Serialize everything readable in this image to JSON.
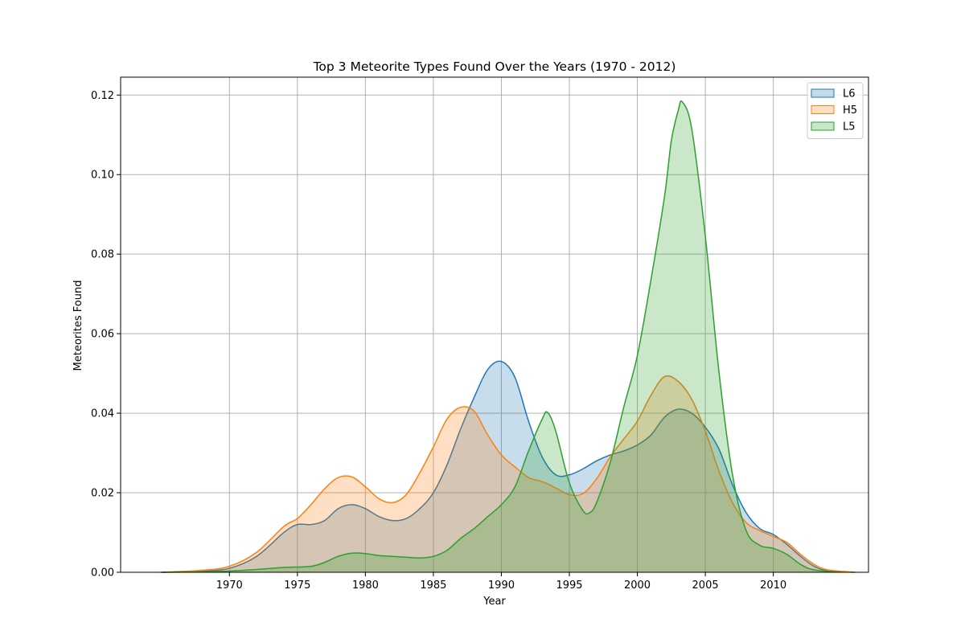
{
  "chart_data": {
    "type": "area",
    "title": "Top 3 Meteorite Types Found Over the Years (1970 - 2012)",
    "xlabel": "Year",
    "ylabel": "Meteorites Found",
    "xlim": [
      1962,
      2017
    ],
    "ylim": [
      0,
      0.1245
    ],
    "xticks": [
      1970,
      1975,
      1980,
      1985,
      1990,
      1995,
      2000,
      2005,
      2010
    ],
    "xtick_labels": [
      "1970",
      "1975",
      "1980",
      "1985",
      "1990",
      "1995",
      "2000",
      "2005",
      "2010"
    ],
    "yticks": [
      0,
      0.02,
      0.04,
      0.06,
      0.08,
      0.1,
      0.12
    ],
    "ytick_labels": [
      "0.00",
      "0.02",
      "0.04",
      "0.06",
      "0.08",
      "0.10",
      "0.12"
    ],
    "grid": true,
    "legend_position": "top-right",
    "series": [
      {
        "name": "L6",
        "color": "#1f77b4",
        "x": [
          1965,
          1968,
          1970,
          1972,
          1974,
          1975,
          1976,
          1977,
          1978,
          1979,
          1980,
          1981,
          1982,
          1983,
          1984,
          1985,
          1986,
          1987,
          1988,
          1989,
          1990,
          1991,
          1992,
          1993,
          1994,
          1995,
          1996,
          1997,
          1998,
          1999,
          2000,
          2001,
          2002,
          2003,
          2004,
          2005,
          2006,
          2007,
          2008,
          2009,
          2010,
          2011,
          2012,
          2013,
          2014,
          2016
        ],
        "y": [
          0,
          0.0003,
          0.001,
          0.004,
          0.01,
          0.012,
          0.012,
          0.013,
          0.016,
          0.017,
          0.016,
          0.014,
          0.013,
          0.0135,
          0.016,
          0.02,
          0.027,
          0.036,
          0.044,
          0.051,
          0.053,
          0.049,
          0.038,
          0.029,
          0.0245,
          0.0245,
          0.026,
          0.028,
          0.0295,
          0.0305,
          0.032,
          0.0345,
          0.039,
          0.041,
          0.04,
          0.0365,
          0.031,
          0.022,
          0.015,
          0.011,
          0.0095,
          0.007,
          0.004,
          0.0015,
          0.0004,
          0
        ]
      },
      {
        "name": "H5",
        "color": "#ff7f0e",
        "x": [
          1965,
          1968,
          1970,
          1972,
          1974,
          1975,
          1976,
          1977,
          1978,
          1979,
          1980,
          1981,
          1982,
          1983,
          1984,
          1985,
          1986,
          1987,
          1988,
          1989,
          1990,
          1991,
          1992,
          1993,
          1994,
          1995,
          1996,
          1997,
          1998,
          1999,
          2000,
          2001,
          2002,
          2003,
          2004,
          2005,
          2006,
          2007,
          2008,
          2009,
          2010,
          2011,
          2012,
          2013,
          2014,
          2016
        ],
        "y": [
          0,
          0.0005,
          0.0015,
          0.005,
          0.0115,
          0.0135,
          0.017,
          0.021,
          0.0238,
          0.024,
          0.0215,
          0.0185,
          0.0175,
          0.0195,
          0.025,
          0.0315,
          0.0385,
          0.0415,
          0.0405,
          0.0345,
          0.0295,
          0.0265,
          0.0238,
          0.0228,
          0.0212,
          0.0195,
          0.0198,
          0.0235,
          0.029,
          0.0335,
          0.038,
          0.0445,
          0.0492,
          0.048,
          0.0435,
          0.0355,
          0.0255,
          0.0175,
          0.0125,
          0.0105,
          0.009,
          0.0075,
          0.0045,
          0.002,
          0.0006,
          0
        ]
      },
      {
        "name": "L5",
        "color": "#2ca02c",
        "x": [
          1965,
          1968,
          1970,
          1972,
          1974,
          1976,
          1977,
          1978,
          1979,
          1980,
          1981,
          1982,
          1983,
          1984,
          1985,
          1986,
          1987,
          1988,
          1989,
          1990,
          1991,
          1992,
          1993,
          1993.4,
          1994,
          1995,
          1996,
          1996.5,
          1997,
          1998,
          1999,
          2000,
          2001,
          2002,
          2002.5,
          2003,
          2003.3,
          2004,
          2005,
          2006,
          2007,
          2008,
          2009,
          2010,
          2011,
          2012,
          2013,
          2015
        ],
        "y": [
          0,
          0.0001,
          0.0003,
          0.0007,
          0.0012,
          0.0015,
          0.0025,
          0.004,
          0.0048,
          0.0047,
          0.0042,
          0.004,
          0.0038,
          0.0036,
          0.004,
          0.0055,
          0.0085,
          0.011,
          0.014,
          0.017,
          0.0215,
          0.0305,
          0.0385,
          0.0402,
          0.0355,
          0.0225,
          0.0155,
          0.015,
          0.0175,
          0.0275,
          0.0415,
          0.0545,
          0.0735,
          0.0945,
          0.1085,
          0.116,
          0.1183,
          0.1115,
          0.0845,
          0.0505,
          0.0245,
          0.0105,
          0.0068,
          0.006,
          0.0045,
          0.002,
          0.0006,
          0
        ]
      }
    ]
  }
}
